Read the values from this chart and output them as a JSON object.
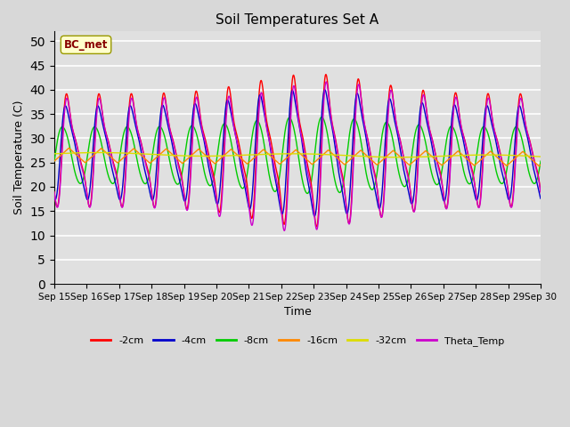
{
  "title": "Soil Temperatures Set A",
  "xlabel": "Time",
  "ylabel": "Soil Temperature (C)",
  "ylim": [
    0,
    52
  ],
  "yticks": [
    0,
    5,
    10,
    15,
    20,
    25,
    30,
    35,
    40,
    45,
    50
  ],
  "legend_labels": [
    "-2cm",
    "-4cm",
    "-8cm",
    "-16cm",
    "-32cm",
    "Theta_Temp"
  ],
  "line_colors": [
    "#ff0000",
    "#0000cc",
    "#00cc00",
    "#ff8800",
    "#dddd00",
    "#cc00cc"
  ],
  "annotation_text": "BC_met",
  "annotation_color": "#880000",
  "annotation_bg": "#ffffcc",
  "plot_bg": "#e0e0e0",
  "fig_bg": "#d8d8d8",
  "grid_color": "#ffffff",
  "figsize": [
    6.4,
    4.8
  ],
  "dpi": 100
}
